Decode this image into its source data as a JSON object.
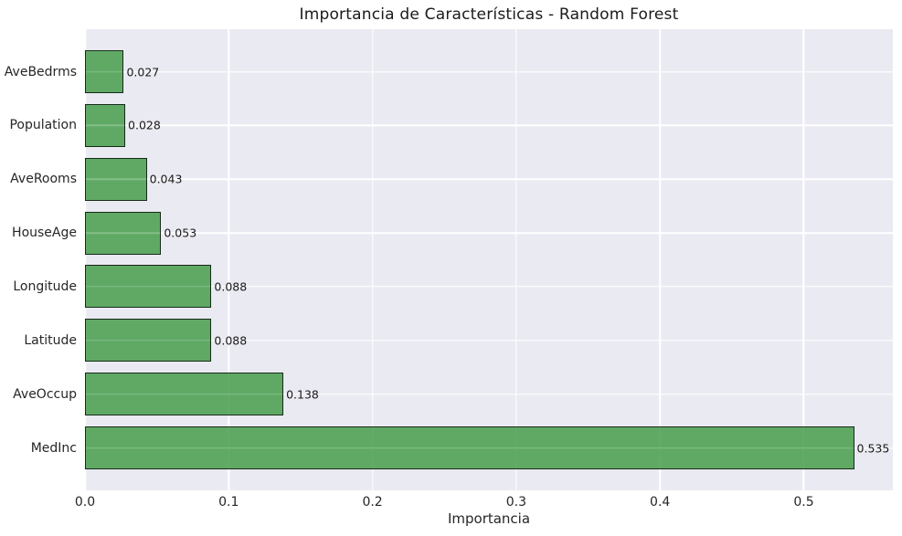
{
  "chart_data": {
    "type": "bar",
    "orientation": "horizontal",
    "title": "Importancia de Características - Random Forest",
    "xlabel": "Importancia",
    "ylabel": "",
    "categories": [
      "AveBedrms",
      "Population",
      "AveRooms",
      "HouseAge",
      "Longitude",
      "Latitude",
      "AveOccup",
      "MedInc"
    ],
    "values": [
      0.027,
      0.028,
      0.043,
      0.053,
      0.088,
      0.088,
      0.138,
      0.535
    ],
    "value_labels": [
      "0.027",
      "0.028",
      "0.043",
      "0.053",
      "0.088",
      "0.088",
      "0.138",
      "0.535"
    ],
    "xlim": [
      0,
      0.562
    ],
    "xticks": [
      0.0,
      0.1,
      0.2,
      0.3,
      0.4,
      0.5
    ],
    "xtick_labels": [
      "0.0",
      "0.1",
      "0.2",
      "0.3",
      "0.4",
      "0.5"
    ],
    "grid": true,
    "legend": null,
    "colors": {
      "bar_fill": "#469d4c",
      "bar_fill_alpha": 0.85,
      "bar_edge": "#0a140c",
      "bar_edge_alpha": 0.85,
      "plot_background": "#eaeaf2",
      "gridline": "#ffffff",
      "text": "#262626",
      "figure_background": "#ffffff"
    }
  }
}
